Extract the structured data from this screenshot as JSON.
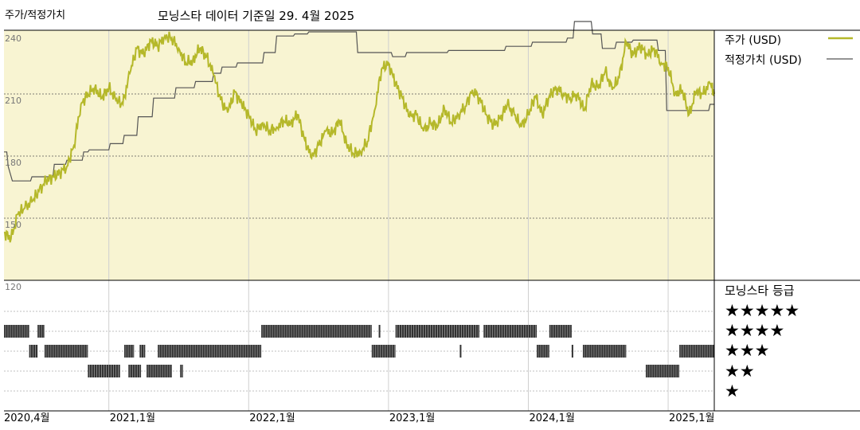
{
  "header": {
    "left_title": "주가/적정가치",
    "center_title": "모닝스타 데이터 기준일 29. 4월 2025"
  },
  "legend": {
    "price_label": "주가 (USD)",
    "fair_label": "적정가치 (USD)",
    "price_color": "#b5b82a",
    "fair_color": "#555555"
  },
  "rating": {
    "title": "모닝스타 등급",
    "rows": [
      "★★★★★",
      "★★★★",
      "★★★",
      "★★",
      "★"
    ]
  },
  "colors": {
    "upper_bg": "#f8f4d2",
    "rating_bar": "#333333"
  },
  "chart_data": {
    "type": "line",
    "title": "주가/적정가치",
    "ylim": [
      120,
      250
    ],
    "y_ticks": [
      240,
      210,
      180,
      150,
      120
    ],
    "xlim": [
      "2020-04",
      "2025-04-29"
    ],
    "x_ticks": [
      "2020,4월",
      "2021,1월",
      "2022,1월",
      "2023,1월",
      "2024,1월",
      "2025,1월"
    ],
    "x_tick_t": [
      0,
      0.75,
      1.75,
      2.75,
      3.75,
      4.75
    ],
    "t_end": 5.08,
    "series": [
      {
        "name": "주가 (USD)",
        "t": [
          0.0,
          0.05,
          0.1,
          0.15,
          0.2,
          0.25,
          0.3,
          0.35,
          0.4,
          0.45,
          0.5,
          0.55,
          0.6,
          0.65,
          0.7,
          0.75,
          0.8,
          0.85,
          0.9,
          0.95,
          1.0,
          1.05,
          1.1,
          1.15,
          1.2,
          1.25,
          1.3,
          1.35,
          1.4,
          1.45,
          1.5,
          1.55,
          1.6,
          1.65,
          1.7,
          1.75,
          1.8,
          1.85,
          1.9,
          1.95,
          2.0,
          2.05,
          2.1,
          2.15,
          2.2,
          2.25,
          2.3,
          2.35,
          2.4,
          2.45,
          2.5,
          2.55,
          2.6,
          2.65,
          2.7,
          2.75,
          2.8,
          2.85,
          2.9,
          2.95,
          3.0,
          3.05,
          3.1,
          3.15,
          3.2,
          3.25,
          3.3,
          3.35,
          3.4,
          3.45,
          3.5,
          3.55,
          3.6,
          3.65,
          3.7,
          3.75,
          3.8,
          3.85,
          3.9,
          3.95,
          4.0,
          4.05,
          4.1,
          4.15,
          4.2,
          4.25,
          4.3,
          4.35,
          4.4,
          4.45,
          4.5,
          4.55,
          4.6,
          4.65,
          4.7,
          4.75,
          4.8,
          4.85,
          4.9,
          4.95,
          5.0,
          5.05,
          5.08
        ],
        "values": [
          143,
          140,
          152,
          155,
          158,
          163,
          168,
          170,
          172,
          175,
          185,
          205,
          210,
          213,
          208,
          213,
          207,
          205,
          220,
          232,
          229,
          236,
          233,
          238,
          237,
          232,
          225,
          226,
          232,
          228,
          219,
          207,
          201,
          211,
          205,
          200,
          192,
          196,
          192,
          194,
          197,
          196,
          200,
          188,
          179,
          185,
          192,
          191,
          197,
          186,
          181,
          182,
          187,
          202,
          222,
          225,
          215,
          208,
          199,
          200,
          192,
          196,
          194,
          203,
          196,
          200,
          204,
          212,
          208,
          200,
          195,
          198,
          205,
          200,
          194,
          200,
          209,
          200,
          209,
          213,
          210,
          208,
          210,
          202,
          215,
          213,
          221,
          212,
          218,
          235,
          229,
          233,
          229,
          232,
          225,
          223,
          210,
          212,
          200,
          211,
          210,
          215,
          210
        ]
      },
      {
        "name": "적정가치 (USD)",
        "t": [
          0.0,
          0.02,
          0.03,
          0.06,
          0.19,
          0.2,
          0.35,
          0.36,
          0.44,
          0.45,
          0.56,
          0.57,
          0.6,
          0.61,
          0.75,
          0.76,
          0.85,
          0.86,
          0.95,
          0.96,
          1.06,
          1.07,
          1.22,
          1.23,
          1.36,
          1.37,
          1.49,
          1.5,
          1.55,
          1.56,
          1.66,
          1.67,
          1.85,
          1.86,
          1.94,
          1.95,
          2.07,
          2.08,
          2.17,
          2.18,
          2.52,
          2.53,
          2.77,
          2.78,
          2.87,
          2.88,
          3.17,
          3.18,
          3.58,
          3.59,
          3.77,
          3.78,
          4.02,
          4.03,
          4.07,
          4.08,
          4.2,
          4.21,
          4.27,
          4.28,
          4.37,
          4.38,
          4.49,
          4.5,
          4.67,
          4.68,
          4.73,
          4.74,
          5.04,
          5.05,
          5.08
        ],
        "values": [
          182,
          182,
          175,
          168,
          168,
          170,
          170,
          176,
          176,
          178,
          178,
          182,
          182,
          183,
          183,
          186,
          186,
          190,
          190,
          199,
          199,
          208,
          208,
          213,
          213,
          216,
          216,
          220,
          220,
          223,
          223,
          225,
          225,
          230,
          230,
          238,
          238,
          239,
          239,
          240,
          240,
          230,
          230,
          228,
          228,
          230,
          230,
          231,
          231,
          233,
          233,
          235,
          235,
          237,
          237,
          245,
          245,
          239,
          239,
          232,
          232,
          235,
          235,
          236,
          236,
          231,
          231,
          202,
          202,
          205,
          205
        ]
      }
    ],
    "rating_history": {
      "5_stars": [],
      "4_stars": [
        [
          0.0,
          0.18
        ],
        [
          0.24,
          0.29
        ],
        [
          1.84,
          2.63
        ],
        [
          2.68,
          2.69
        ],
        [
          2.8,
          3.4
        ],
        [
          3.43,
          3.81
        ],
        [
          3.9,
          4.06
        ]
      ],
      "3_stars": [
        [
          0.18,
          0.24
        ],
        [
          0.29,
          0.6
        ],
        [
          0.86,
          0.93
        ],
        [
          0.97,
          1.01
        ],
        [
          1.1,
          1.84
        ],
        [
          2.63,
          2.8
        ],
        [
          3.26,
          3.27
        ],
        [
          3.81,
          3.9
        ],
        [
          4.06,
          4.07
        ],
        [
          4.14,
          4.45
        ],
        [
          4.83,
          5.08
        ]
      ],
      "2_stars": [
        [
          0.6,
          0.83
        ],
        [
          0.89,
          0.98
        ],
        [
          1.02,
          1.2
        ],
        [
          1.26,
          1.28
        ],
        [
          4.59,
          4.83
        ]
      ],
      "1_star": []
    }
  }
}
